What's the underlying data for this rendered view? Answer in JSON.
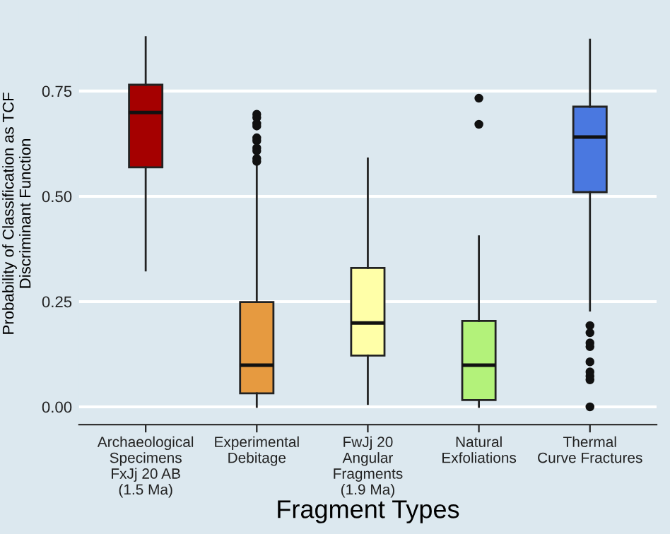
{
  "chart_data": {
    "type": "box",
    "xlabel": "Fragment Types",
    "ylabel": "Probability of Classification as TCF\nDiscriminant Function",
    "categories": [
      "Archaeological\nSpecimens\nFxJj 20 AB\n(1.5 Ma)",
      "Experimental\nDebitage",
      "FwJj 20\nAngular\nFragments\n(1.9 Ma)",
      "Natural\nExfoliations",
      "Thermal\nCurve Fractures"
    ],
    "colors": [
      "#a50000",
      "#e69a40",
      "#ffffa8",
      "#b3f27a",
      "#4a78e0"
    ],
    "boxes": [
      {
        "low": 0.324,
        "q1": 0.569,
        "median": 0.699,
        "q3": 0.765,
        "high": 0.878
      },
      {
        "low": 0.0,
        "q1": 0.032,
        "median": 0.099,
        "q3": 0.249,
        "high": 0.572,
        "outliers": [
          0.695,
          0.687,
          0.673,
          0.667,
          0.639,
          0.632,
          0.615,
          0.608,
          0.59,
          0.583
        ]
      },
      {
        "low": 0.007,
        "q1": 0.122,
        "median": 0.199,
        "q3": 0.33,
        "high": 0.59
      },
      {
        "low": 0.0,
        "q1": 0.016,
        "median": 0.099,
        "q3": 0.204,
        "high": 0.405,
        "outliers": [
          0.733,
          0.671
        ]
      },
      {
        "low": 0.229,
        "q1": 0.51,
        "median": 0.641,
        "q3": 0.713,
        "high": 0.872,
        "outliers": [
          0.193,
          0.176,
          0.152,
          0.143,
          0.107,
          0.083,
          0.073,
          0.064,
          0.0
        ]
      }
    ],
    "ylim": [
      -0.042,
      0.96
    ],
    "yticks": [
      {
        "value": 0,
        "label": "0.00"
      },
      {
        "value": 0.25,
        "label": "0.25"
      },
      {
        "value": 0.5,
        "label": "0.50"
      },
      {
        "value": 0.75,
        "label": "0.75"
      }
    ],
    "grid": "y"
  }
}
